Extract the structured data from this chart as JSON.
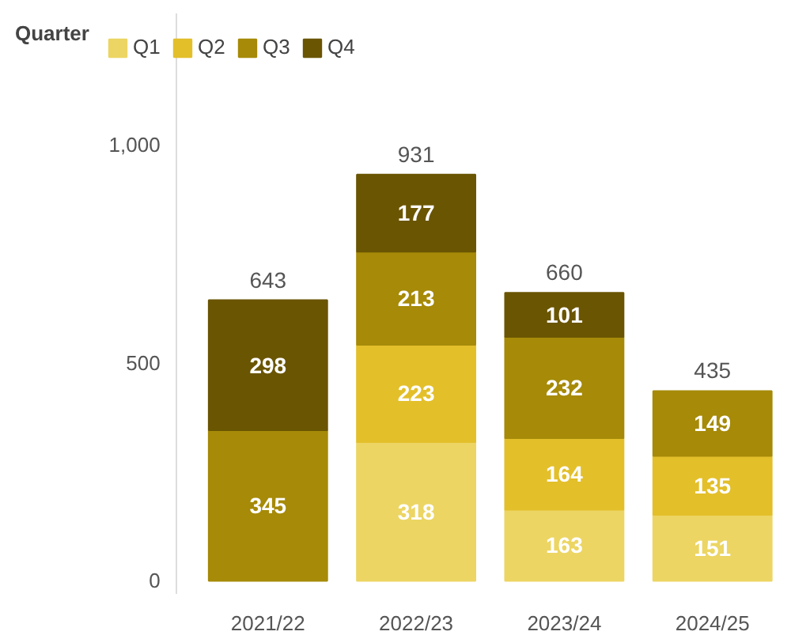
{
  "chart_data": {
    "type": "bar",
    "stacked": true,
    "legend_title": "Quarter",
    "legend": "top left",
    "categories": [
      "2021/22",
      "2022/23",
      "2023/24",
      "2024/25"
    ],
    "series": [
      {
        "name": "Q1",
        "color": "#ecd563",
        "values": [
          null,
          318,
          163,
          151
        ]
      },
      {
        "name": "Q2",
        "color": "#e3bf2a",
        "values": [
          null,
          223,
          164,
          135
        ]
      },
      {
        "name": "Q3",
        "color": "#a68a08",
        "values": [
          345,
          213,
          232,
          149
        ]
      },
      {
        "name": "Q4",
        "color": "#6a5502",
        "values": [
          298,
          177,
          101,
          null
        ]
      }
    ],
    "ylim": [
      -30,
      1300
    ],
    "yticks": [
      0,
      500,
      {
        "value": 1000,
        "label": "1,000"
      }
    ],
    "data_labels": true,
    "totals": [
      "643",
      "931",
      "660",
      "435"
    ],
    "grid": false
  }
}
